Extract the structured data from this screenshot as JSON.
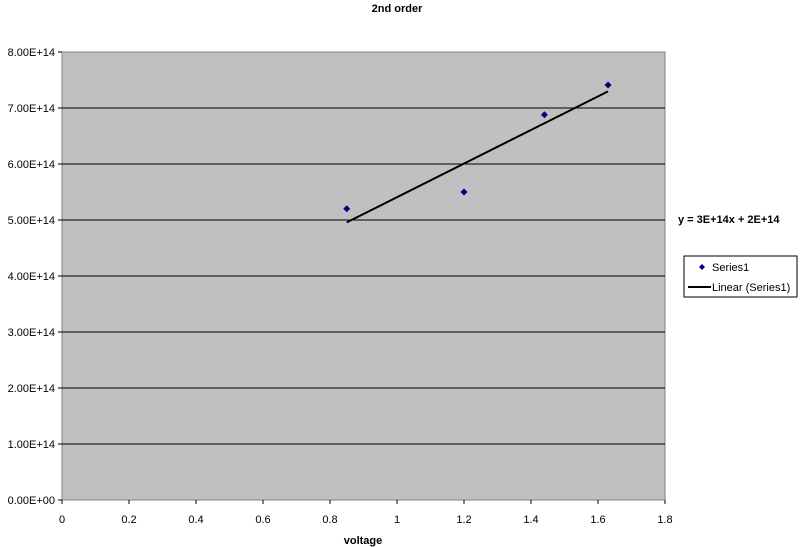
{
  "chart_data": {
    "type": "scatter",
    "title": "2nd order",
    "xlabel": "voltage",
    "ylabel": "",
    "xlim": [
      0,
      1.8
    ],
    "ylim": [
      0,
      800000000000000.0
    ],
    "x_ticks": [
      "0",
      "0.2",
      "0.4",
      "0.6",
      "0.8",
      "1",
      "1.2",
      "1.4",
      "1.6",
      "1.8"
    ],
    "y_ticks": [
      "0.00E+00",
      "1.00E+14",
      "2.00E+14",
      "3.00E+14",
      "4.00E+14",
      "5.00E+14",
      "6.00E+14",
      "7.00E+14",
      "8.00E+14"
    ],
    "grid": "horizontal",
    "legend_position": "right",
    "series": [
      {
        "name": "Series1",
        "x": [
          0.85,
          1.2,
          1.44,
          1.63
        ],
        "y": [
          520000000000000.0,
          550000000000000.0,
          688000000000000.0,
          741000000000000.0
        ],
        "color": "#000080",
        "marker": "diamond"
      }
    ],
    "trendline": {
      "name": "Linear (Series1)",
      "type": "linear",
      "color": "#000000",
      "equation": "y = 3E+14x + 2E+14"
    },
    "plot_background": "#c0c0c0"
  }
}
